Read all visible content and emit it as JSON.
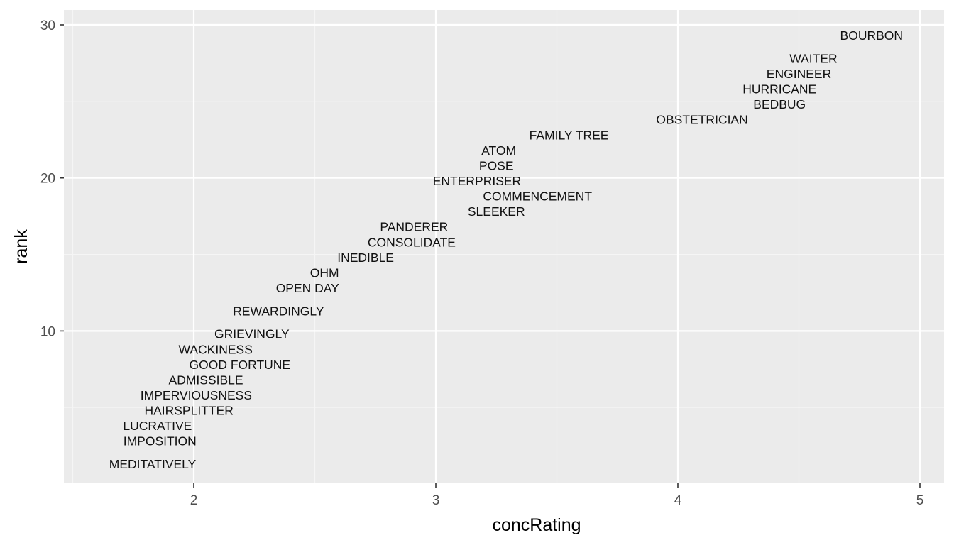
{
  "chart_data": {
    "type": "scatter",
    "title": "",
    "xlabel": "concRating",
    "ylabel": "rank",
    "xlim": [
      1.5,
      5.1
    ],
    "ylim": [
      0,
      30.9
    ],
    "x_ticks": [
      2,
      3,
      4,
      5
    ],
    "y_ticks": [
      10,
      20,
      30
    ],
    "x_tick_labels": [
      "2",
      "3",
      "4",
      "5"
    ],
    "y_tick_labels": [
      "10",
      "20",
      "30"
    ],
    "grid": true,
    "legend": "none",
    "colors": {
      "panel_background": "#ebebeb",
      "grid_major": "#ffffff",
      "grid_minor": "#f5f5f5",
      "text": "#111111",
      "tick_text": "#4d4d4d",
      "tick_mark": "#333333"
    },
    "points": [
      {
        "label": "MEDITATIVELY",
        "x": 1.83,
        "y": 1.3
      },
      {
        "label": "IMPOSITION",
        "x": 1.86,
        "y": 2.8
      },
      {
        "label": "LUCRATIVE",
        "x": 1.85,
        "y": 3.8
      },
      {
        "label": "HAIRSPLITTER",
        "x": 1.98,
        "y": 4.8
      },
      {
        "label": "IMPERVIOUSNESS",
        "x": 2.01,
        "y": 5.8
      },
      {
        "label": "ADMISSIBLE",
        "x": 2.05,
        "y": 6.8
      },
      {
        "label": "GOOD FORTUNE",
        "x": 2.19,
        "y": 7.8
      },
      {
        "label": "WACKINESS",
        "x": 2.09,
        "y": 8.8
      },
      {
        "label": "GRIEVINGLY",
        "x": 2.24,
        "y": 9.8
      },
      {
        "label": "REWARDINGLY",
        "x": 2.35,
        "y": 11.3
      },
      {
        "label": "OPEN DAY",
        "x": 2.47,
        "y": 12.8
      },
      {
        "label": "OHM",
        "x": 2.54,
        "y": 13.8
      },
      {
        "label": "INEDIBLE",
        "x": 2.71,
        "y": 14.8
      },
      {
        "label": "CONSOLIDATE",
        "x": 2.9,
        "y": 15.8
      },
      {
        "label": "PANDERER",
        "x": 2.91,
        "y": 16.8
      },
      {
        "label": "SLEEKER",
        "x": 3.25,
        "y": 17.8
      },
      {
        "label": "COMMENCEMENT",
        "x": 3.42,
        "y": 18.8
      },
      {
        "label": "ENTERPRISER",
        "x": 3.17,
        "y": 19.8
      },
      {
        "label": "POSE",
        "x": 3.25,
        "y": 20.8
      },
      {
        "label": "ATOM",
        "x": 3.26,
        "y": 21.8
      },
      {
        "label": "FAMILY TREE",
        "x": 3.55,
        "y": 22.8
      },
      {
        "label": "OBSTETRICIAN",
        "x": 4.1,
        "y": 23.8
      },
      {
        "label": "BEDBUG",
        "x": 4.42,
        "y": 24.8
      },
      {
        "label": "HURRICANE",
        "x": 4.42,
        "y": 25.8
      },
      {
        "label": "ENGINEER",
        "x": 4.5,
        "y": 26.8
      },
      {
        "label": "WAITER",
        "x": 4.56,
        "y": 27.8
      },
      {
        "label": "BOURBON",
        "x": 4.8,
        "y": 29.3
      }
    ]
  }
}
